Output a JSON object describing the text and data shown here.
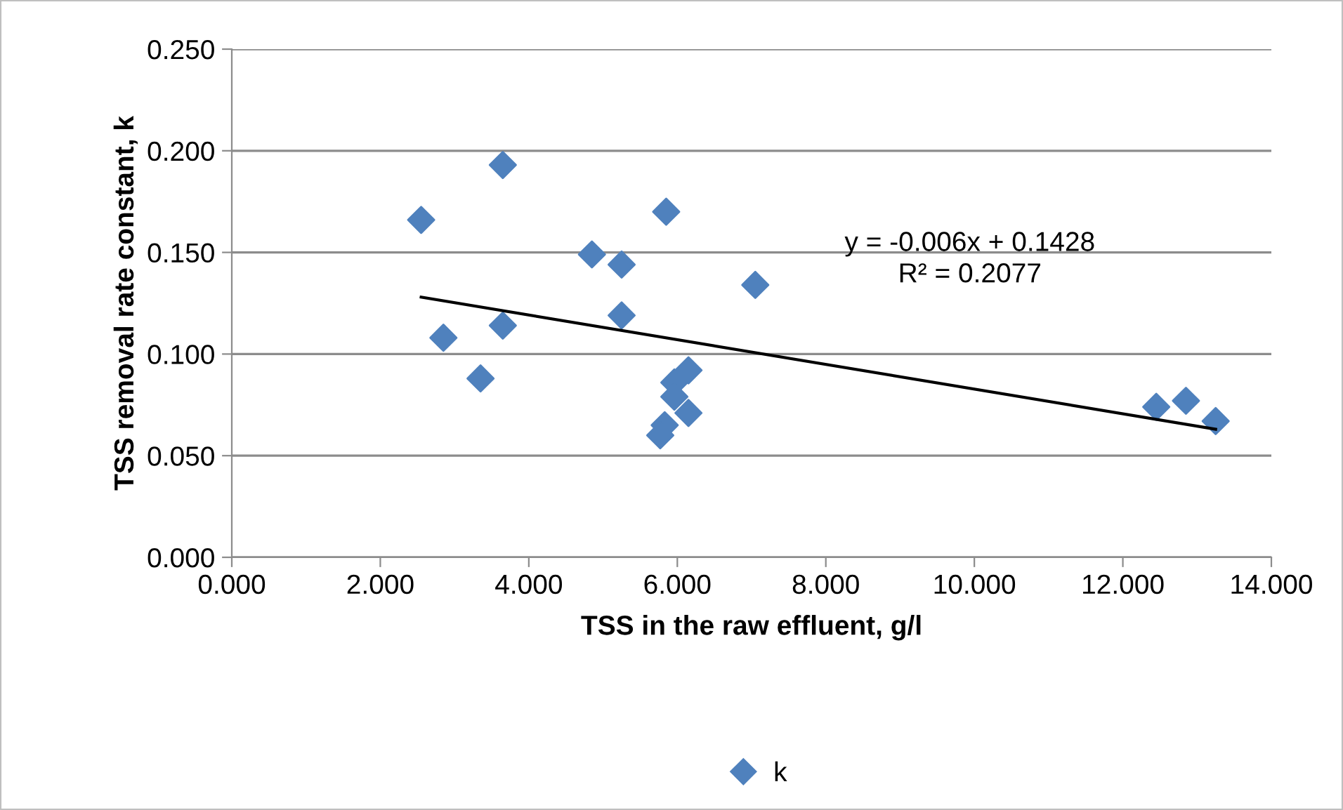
{
  "chart_data": {
    "type": "scatter",
    "xlabel": "TSS in the raw effluent, g/l",
    "ylabel": "TSS removal rate constant, k",
    "xlim": [
      0,
      14
    ],
    "ylim": [
      0,
      0.25
    ],
    "xticks": [
      {
        "value": 0,
        "label": "0.000"
      },
      {
        "value": 2,
        "label": "2.000"
      },
      {
        "value": 4,
        "label": "4.000"
      },
      {
        "value": 6,
        "label": "6.000"
      },
      {
        "value": 8,
        "label": "8.000"
      },
      {
        "value": 10,
        "label": "10.000"
      },
      {
        "value": 12,
        "label": "12.000"
      },
      {
        "value": 14,
        "label": "14.000"
      }
    ],
    "yticks": [
      {
        "value": 0,
        "label": "0.000"
      },
      {
        "value": 0.05,
        "label": "0.050"
      },
      {
        "value": 0.1,
        "label": "0.100"
      },
      {
        "value": 0.15,
        "label": "0.150"
      },
      {
        "value": 0.2,
        "label": "0.200"
      },
      {
        "value": 0.25,
        "label": "0.250"
      }
    ],
    "grid": "y",
    "legend": "bottom",
    "series": [
      {
        "name": "k",
        "marker": "diamond",
        "color": "#4f81bd",
        "x": [
          2.55,
          3.65,
          2.85,
          3.35,
          3.65,
          4.85,
          5.25,
          5.25,
          5.85,
          7.05,
          5.96,
          6.15,
          5.96,
          6.15,
          5.83,
          5.77,
          12.45,
          12.85,
          13.25
        ],
        "values": [
          0.166,
          0.193,
          0.108,
          0.088,
          0.114,
          0.149,
          0.144,
          0.119,
          0.17,
          0.134,
          0.086,
          0.092,
          0.079,
          0.071,
          0.065,
          0.06,
          0.074,
          0.077,
          0.067
        ]
      },
      {
        "type": "line",
        "color": "#000000",
        "marker": "none",
        "x": [
          2.55,
          13.25
        ],
        "values": [
          0.128,
          0.063
        ]
      }
    ],
    "annotations": [
      "y = -0.006x + 0.1428\nR² = 0.2077"
    ]
  }
}
